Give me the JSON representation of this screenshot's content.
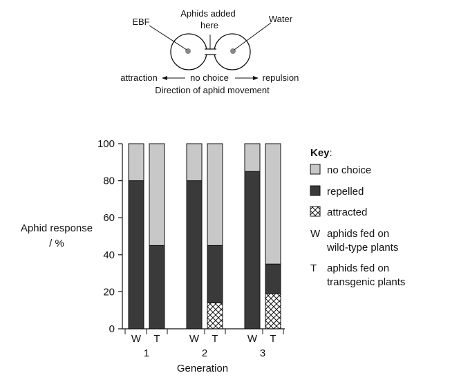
{
  "diagram": {
    "ebf_label": "EBF",
    "added_label_line1": "Aphids added",
    "added_label_line2": "here",
    "water_label": "Water",
    "left_direction": "attraction",
    "middle_direction": "no choice",
    "right_direction": "repulsion",
    "caption": "Direction of aphid movement"
  },
  "chart_data": {
    "type": "bar",
    "stacked": true,
    "ylabel_line1": "Aphid response",
    "ylabel_line2": "/ %",
    "xlabel": "Generation",
    "ylim": [
      0,
      100
    ],
    "yticks": [
      0,
      20,
      40,
      60,
      80,
      100
    ],
    "groups": [
      "1",
      "2",
      "3"
    ],
    "bars": [
      {
        "group": "1",
        "label": "W",
        "attracted": 0,
        "repelled": 80,
        "no_choice": 20
      },
      {
        "group": "1",
        "label": "T",
        "attracted": 0,
        "repelled": 45,
        "no_choice": 55
      },
      {
        "group": "2",
        "label": "W",
        "attracted": 0,
        "repelled": 80,
        "no_choice": 20
      },
      {
        "group": "2",
        "label": "T",
        "attracted": 14,
        "repelled": 31,
        "no_choice": 55
      },
      {
        "group": "3",
        "label": "W",
        "attracted": 0,
        "repelled": 85,
        "no_choice": 15
      },
      {
        "group": "3",
        "label": "T",
        "attracted": 19,
        "repelled": 16,
        "no_choice": 65
      }
    ],
    "series_colors": {
      "no_choice": "#c8c8c8",
      "repelled": "#3a3a3a",
      "attracted": "crosshatch"
    }
  },
  "key": {
    "title": "Key",
    "colon": ":",
    "no_choice": "no choice",
    "repelled": "repelled",
    "attracted": "attracted",
    "w_symbol": "W",
    "w_line1": "aphids fed on",
    "w_line2": "wild-type plants",
    "t_symbol": "T",
    "t_line1": "aphids fed on",
    "t_line2": "transgenic plants"
  }
}
